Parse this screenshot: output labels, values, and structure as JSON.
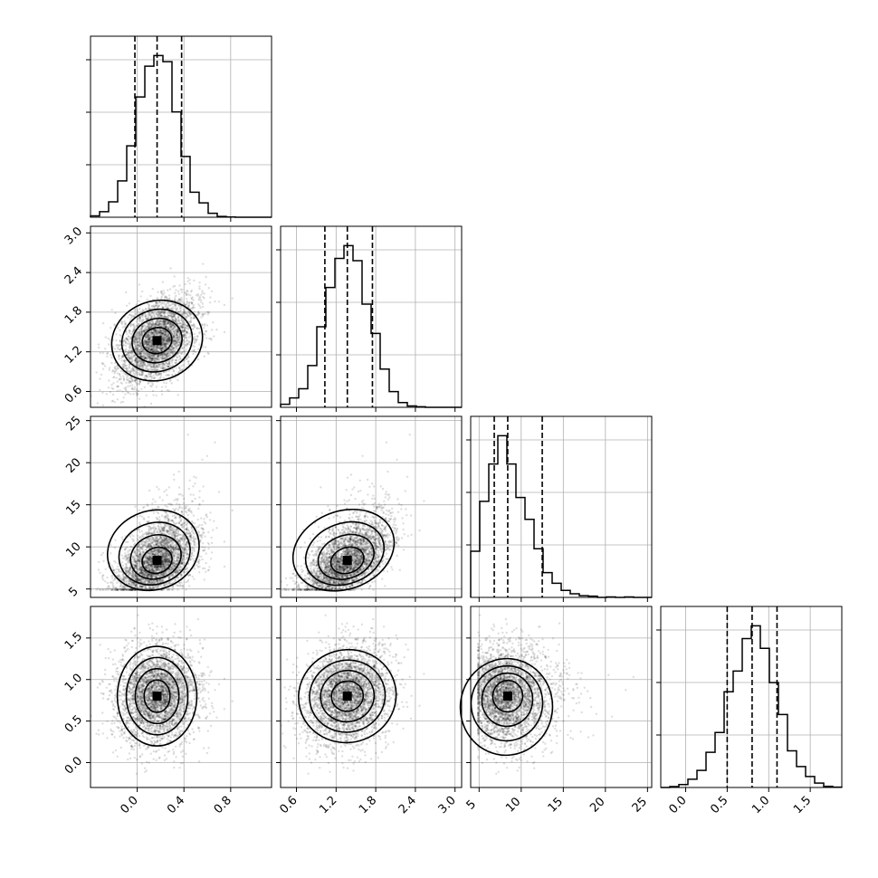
{
  "chart_data": {
    "type": "corner",
    "title": "",
    "params": [
      {
        "index": 0,
        "label": "",
        "range": [
          -0.4,
          1.15
        ],
        "ticks": [
          0.0,
          0.4,
          0.8
        ],
        "tick_labels": [
          "0.0",
          "0.4",
          "0.8"
        ],
        "mean": 0.17,
        "sd": 0.17,
        "skew": 0,
        "quantiles": [
          -0.02,
          0.17,
          0.38
        ]
      },
      {
        "index": 1,
        "label": "",
        "range": [
          0.36,
          3.1
        ],
        "ticks": [
          0.6,
          1.2,
          1.8,
          2.4,
          3.0
        ],
        "tick_labels": [
          "0.6",
          "1.2",
          "1.8",
          "2.4",
          "3.0"
        ],
        "mean": 1.37,
        "sd": 0.33,
        "skew": 0,
        "quantiles": [
          1.03,
          1.37,
          1.75
        ]
      },
      {
        "index": 2,
        "label": "",
        "range": [
          4.0,
          25.5
        ],
        "ticks": [
          5,
          10,
          15,
          20,
          25
        ],
        "tick_labels": [
          "5",
          "10",
          "15",
          "20",
          "25"
        ],
        "mean": 8.4,
        "sd": 2.6,
        "skew": 1,
        "quantiles": [
          6.8,
          8.4,
          12.5
        ]
      },
      {
        "index": 3,
        "label": "",
        "range": [
          -0.3,
          1.88
        ],
        "ticks": [
          0.0,
          0.5,
          1.0,
          1.5
        ],
        "tick_labels": [
          "0.0",
          "0.5",
          "1.0",
          "1.5"
        ],
        "mean": 0.8,
        "sd": 0.3,
        "skew": 0,
        "quantiles": [
          0.5,
          0.8,
          1.1
        ]
      }
    ],
    "correlations": {
      "1-0": 0.45,
      "2-0": 0.5,
      "2-1": 0.55,
      "3-0": 0.0,
      "3-1": 0.35,
      "3-2": -0.15
    },
    "quantile_levels": [
      0.16,
      0.5,
      0.84
    ],
    "contour_levels": [
      "0.5",
      "1.0",
      "1.5",
      "2.0"
    ],
    "histogram_bins": 20,
    "grid": true,
    "legend": "none"
  }
}
